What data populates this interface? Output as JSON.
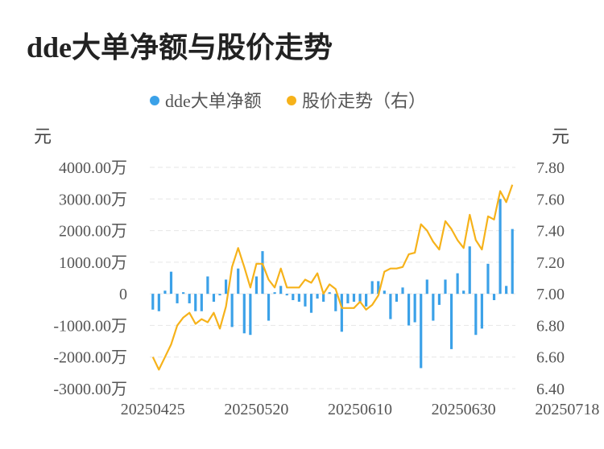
{
  "title": "dde大单净额与股价走势",
  "chart_data": {
    "type": "bar",
    "legend": [
      {
        "label": "dde大单净额",
        "color": "#3ba1e8"
      },
      {
        "label": "股价走势（右）",
        "color": "#f6b21a"
      }
    ],
    "left_unit": "元",
    "right_unit": "元",
    "left_ticks": [
      "4000.00万",
      "3000.00万",
      "2000.00万",
      "1000.00万",
      "0",
      "-1000.00万",
      "-2000.00万",
      "-3000.00万"
    ],
    "left_tick_values": [
      4000,
      3000,
      2000,
      1000,
      0,
      -1000,
      -2000,
      -3000
    ],
    "right_ticks": [
      "7.80",
      "7.60",
      "7.40",
      "7.20",
      "7.00",
      "6.80",
      "6.60",
      "6.40"
    ],
    "right_tick_values": [
      7.8,
      7.6,
      7.4,
      7.2,
      7.0,
      6.8,
      6.6,
      6.4
    ],
    "ylim_left": [
      -3000,
      4000
    ],
    "ylim_right": [
      6.4,
      7.8
    ],
    "x_labels": [
      "20250425",
      "20250520",
      "20250610",
      "20250630",
      "20250718"
    ],
    "x_label_index": [
      0,
      17,
      34,
      51,
      68
    ],
    "series": [
      {
        "name": "dde大单净额",
        "kind": "bar",
        "values": [
          -500,
          -550,
          100,
          700,
          -300,
          50,
          -300,
          -550,
          -550,
          550,
          -250,
          -50,
          450,
          -1050,
          800,
          -1250,
          -1300,
          550,
          1350,
          -850,
          50,
          250,
          -50,
          -200,
          -250,
          -400,
          -600,
          -150,
          -250,
          50,
          -550,
          -1200,
          -300,
          -250,
          -300,
          -400,
          400,
          400,
          100,
          -800,
          -250,
          200,
          -1000,
          -900,
          -2350,
          450,
          -850,
          -350,
          450,
          -1750,
          650,
          100,
          1500,
          -1300,
          -1100,
          950,
          -200,
          3000,
          250,
          2050
        ]
      },
      {
        "name": "股价走势（右）",
        "kind": "line",
        "values": [
          6.6,
          6.52,
          6.6,
          6.68,
          6.8,
          6.85,
          6.88,
          6.81,
          6.84,
          6.82,
          6.88,
          6.78,
          6.92,
          7.17,
          7.29,
          7.17,
          7.04,
          7.19,
          7.19,
          7.09,
          7.04,
          7.16,
          7.04,
          7.04,
          7.04,
          7.09,
          7.07,
          7.13,
          7.0,
          7.06,
          7.03,
          6.91,
          6.91,
          6.91,
          6.95,
          6.9,
          6.93,
          6.99,
          7.14,
          7.16,
          7.16,
          7.17,
          7.25,
          7.26,
          7.44,
          7.4,
          7.33,
          7.28,
          7.46,
          7.41,
          7.34,
          7.29,
          7.5,
          7.34,
          7.28,
          7.49,
          7.47,
          7.65,
          7.58,
          7.69
        ]
      }
    ]
  }
}
